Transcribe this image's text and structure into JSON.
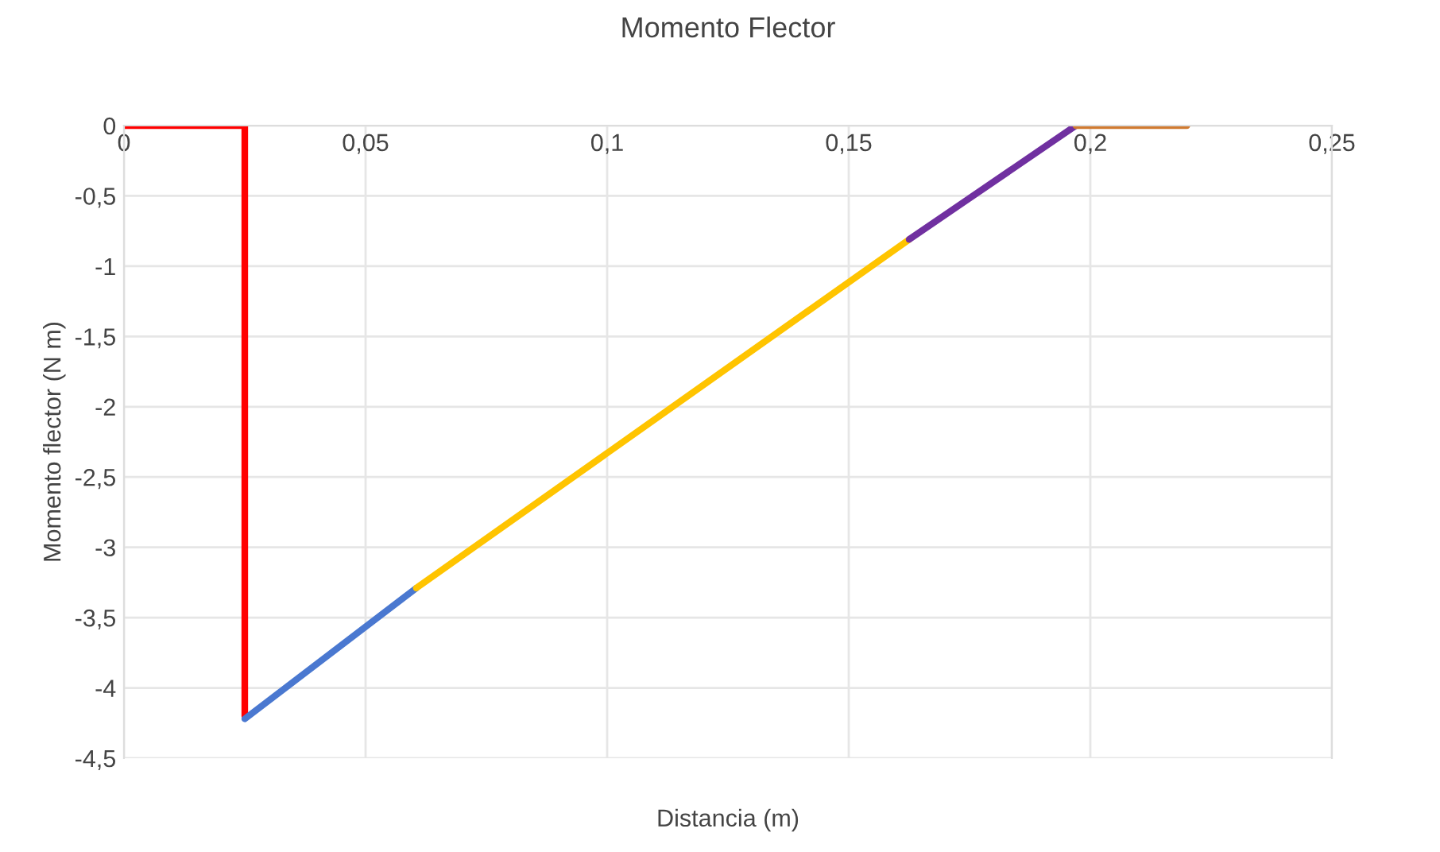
{
  "chart_data": {
    "type": "line",
    "title": "Momento Flector",
    "xlabel": "Distancia (m)",
    "ylabel": "Momento flector (N m)",
    "series": [
      {
        "color": "#ff0000",
        "x": [
          0,
          0.025,
          0.025
        ],
        "values": [
          0,
          0,
          -4.2
        ]
      },
      {
        "color": "#4a78d0",
        "x": [
          0.025,
          0.0605
        ],
        "values": [
          -4.22,
          -3.29
        ]
      },
      {
        "color": "#ffc400",
        "x": [
          0.0605,
          0.1625
        ],
        "values": [
          -3.29,
          -0.81
        ]
      },
      {
        "color": "#7030a0",
        "x": [
          0.1625,
          0.197
        ],
        "values": [
          -0.81,
          0
        ]
      },
      {
        "color": "#d07a30",
        "x": [
          0.197,
          0.22
        ],
        "values": [
          0,
          0
        ]
      }
    ],
    "xlim": [
      0,
      0.25
    ],
    "ylim": [
      -4.5,
      0
    ],
    "xticks": [
      0,
      {
        "value": 0.05,
        "label": "0,05"
      },
      {
        "value": 0.1,
        "label": "0,1"
      },
      {
        "value": 0.15,
        "label": "0,15"
      },
      {
        "value": 0.2,
        "label": "0,2"
      },
      {
        "value": 0.25,
        "label": "0,25"
      }
    ],
    "yticks": [
      {
        "value": -4.5,
        "label": "-4,5"
      },
      -4,
      {
        "value": -3.5,
        "label": "-3,5"
      },
      -3,
      {
        "value": -2.5,
        "label": "-2,5"
      },
      -2,
      {
        "value": -1.5,
        "label": "-1,5"
      },
      -1,
      {
        "value": -0.5,
        "label": "-0,5"
      },
      0
    ],
    "grid": true,
    "marker": "none",
    "line_style": "solid"
  }
}
